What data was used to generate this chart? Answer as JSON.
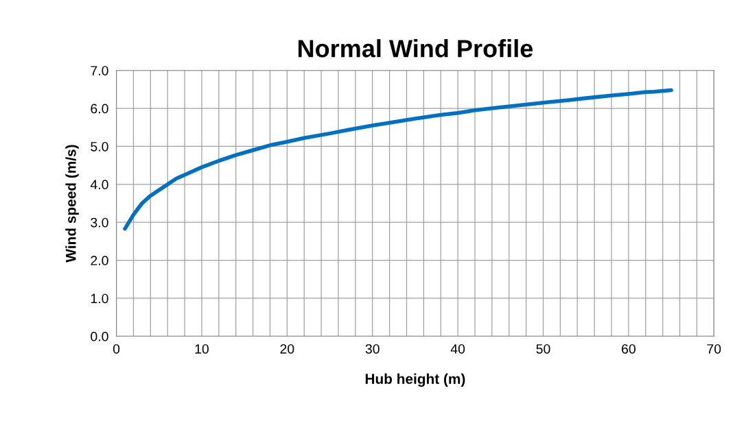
{
  "chart_data": {
    "type": "line",
    "title": "Normal Wind Profile",
    "xlabel": "Hub height (m)",
    "ylabel": "Wind speed (m/s)",
    "x": [
      1,
      2,
      3,
      4,
      5,
      6,
      7,
      8,
      10,
      12,
      14,
      16,
      18,
      20,
      22,
      25,
      28,
      30,
      33,
      35,
      38,
      40,
      42,
      45,
      48,
      50,
      53,
      55,
      58,
      60,
      62,
      63,
      65
    ],
    "series": [
      {
        "color": "#0070c0",
        "values": [
          2.83,
          3.2,
          3.5,
          3.7,
          3.85,
          4.0,
          4.15,
          4.25,
          4.45,
          4.62,
          4.77,
          4.9,
          5.03,
          5.12,
          5.22,
          5.34,
          5.47,
          5.55,
          5.66,
          5.73,
          5.83,
          5.88,
          5.95,
          6.03,
          6.1,
          6.15,
          6.22,
          6.27,
          6.34,
          6.38,
          6.43,
          6.44,
          6.48
        ]
      }
    ],
    "xlim": [
      0,
      70
    ],
    "xticks": [
      0,
      {
        "value": 2,
        "label": null
      },
      {
        "value": 4,
        "label": null
      },
      {
        "value": 6,
        "label": null
      },
      {
        "value": 8,
        "label": null
      },
      10,
      {
        "value": 12,
        "label": null
      },
      {
        "value": 14,
        "label": null
      },
      {
        "value": 16,
        "label": null
      },
      {
        "value": 18,
        "label": null
      },
      20,
      {
        "value": 22,
        "label": null
      },
      {
        "value": 24,
        "label": null
      },
      {
        "value": 26,
        "label": null
      },
      {
        "value": 28,
        "label": null
      },
      30,
      {
        "value": 32,
        "label": null
      },
      {
        "value": 34,
        "label": null
      },
      {
        "value": 36,
        "label": null
      },
      {
        "value": 38,
        "label": null
      },
      40,
      {
        "value": 42,
        "label": null
      },
      {
        "value": 44,
        "label": null
      },
      {
        "value": 46,
        "label": null
      },
      {
        "value": 48,
        "label": null
      },
      50,
      {
        "value": 52,
        "label": null
      },
      {
        "value": 54,
        "label": null
      },
      {
        "value": 56,
        "label": null
      },
      {
        "value": 58,
        "label": null
      },
      60,
      {
        "value": 62,
        "label": null
      },
      {
        "value": 64,
        "label": null
      },
      {
        "value": 66,
        "label": null
      },
      {
        "value": 68,
        "label": null
      },
      70
    ],
    "ylim": [
      0,
      7
    ],
    "yticks": [
      {
        "value": 0,
        "label": "0.0"
      },
      {
        "value": 1,
        "label": "1.0"
      },
      {
        "value": 2,
        "label": "2.0"
      },
      {
        "value": 3,
        "label": "3.0"
      },
      {
        "value": 4,
        "label": "4.0"
      },
      {
        "value": 5,
        "label": "5.0"
      },
      {
        "value": 6,
        "label": "6.0"
      },
      {
        "value": 7,
        "label": "7.0"
      }
    ],
    "grid": true,
    "legend": false,
    "marker": "none",
    "line_style": "solid"
  }
}
